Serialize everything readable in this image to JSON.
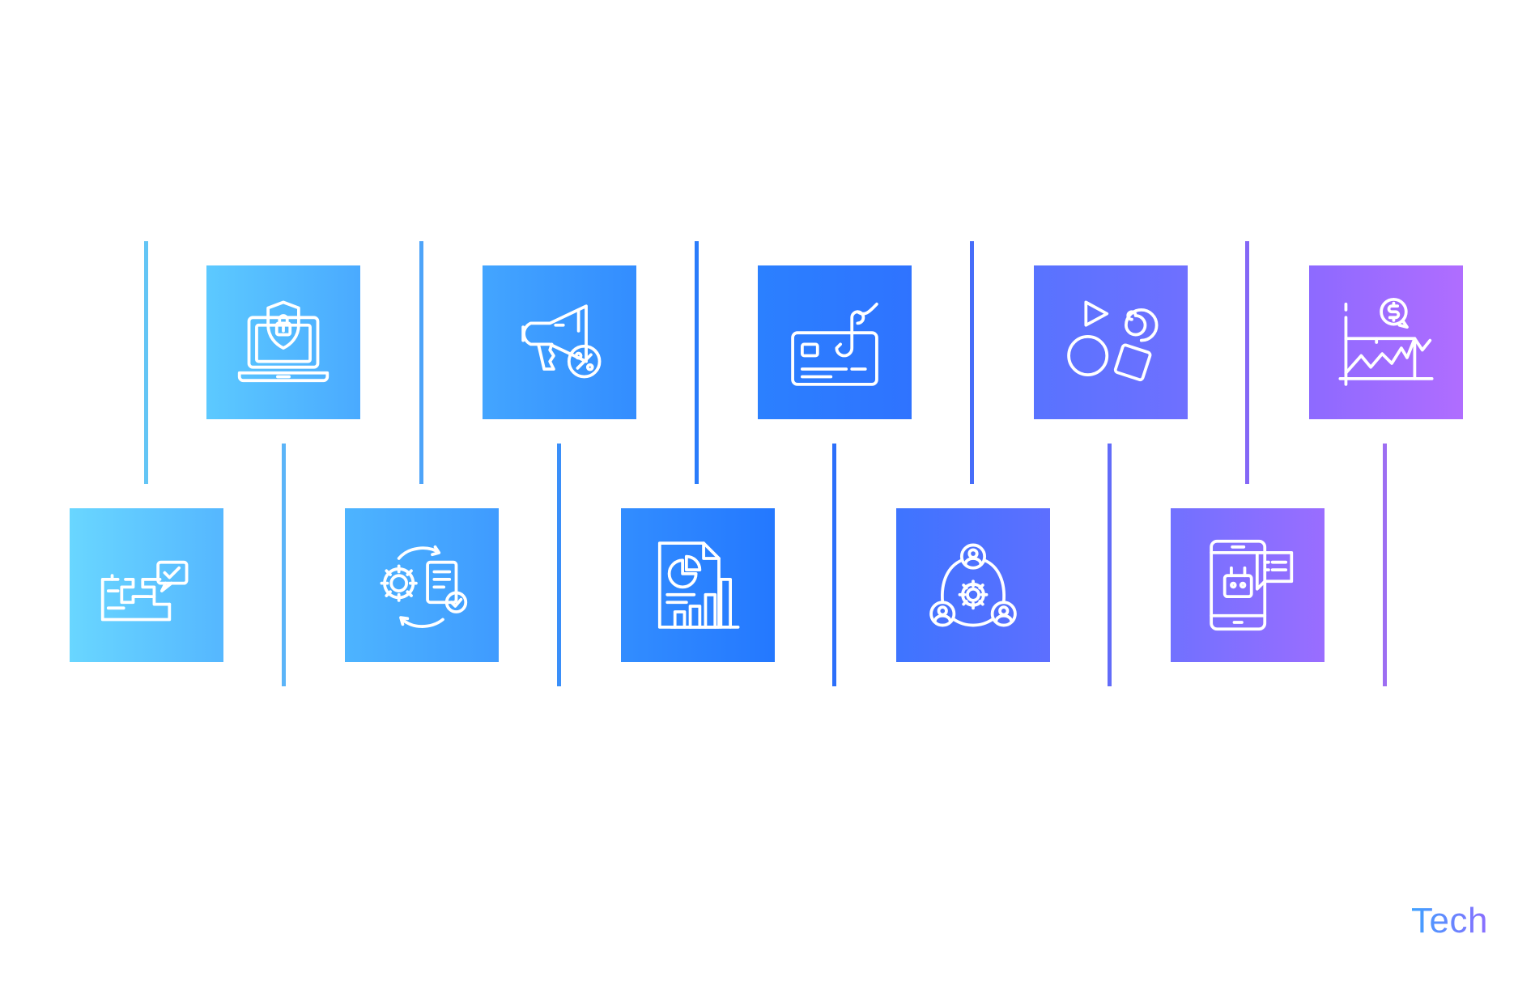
{
  "brand": {
    "label": "Tech"
  },
  "icons": [
    {
      "name": "puzzle-check-icon",
      "color_start": "#69d6ff",
      "color_end": "#55b7ff"
    },
    {
      "name": "laptop-security-icon",
      "color_start": "#5cc9ff",
      "color_end": "#4aaaff"
    },
    {
      "name": "gear-document-cycle-icon",
      "color_start": "#4db4ff",
      "color_end": "#3f9bff"
    },
    {
      "name": "megaphone-discount-icon",
      "color_start": "#43a5ff",
      "color_end": "#338dff"
    },
    {
      "name": "report-analytics-icon",
      "color_start": "#328dff",
      "color_end": "#2478ff"
    },
    {
      "name": "card-phishing-icon",
      "color_start": "#2b80ff",
      "color_end": "#2f73ff"
    },
    {
      "name": "team-gear-network-icon",
      "color_start": "#3e74ff",
      "color_end": "#5d6fff"
    },
    {
      "name": "shapes-icon",
      "color_start": "#5873ff",
      "color_end": "#6f70ff"
    },
    {
      "name": "mobile-robot-chat-icon",
      "color_start": "#7171ff",
      "color_end": "#9a6dff"
    },
    {
      "name": "finance-chart-icon",
      "color_start": "#8d6aff",
      "color_end": "#b06dff"
    }
  ]
}
